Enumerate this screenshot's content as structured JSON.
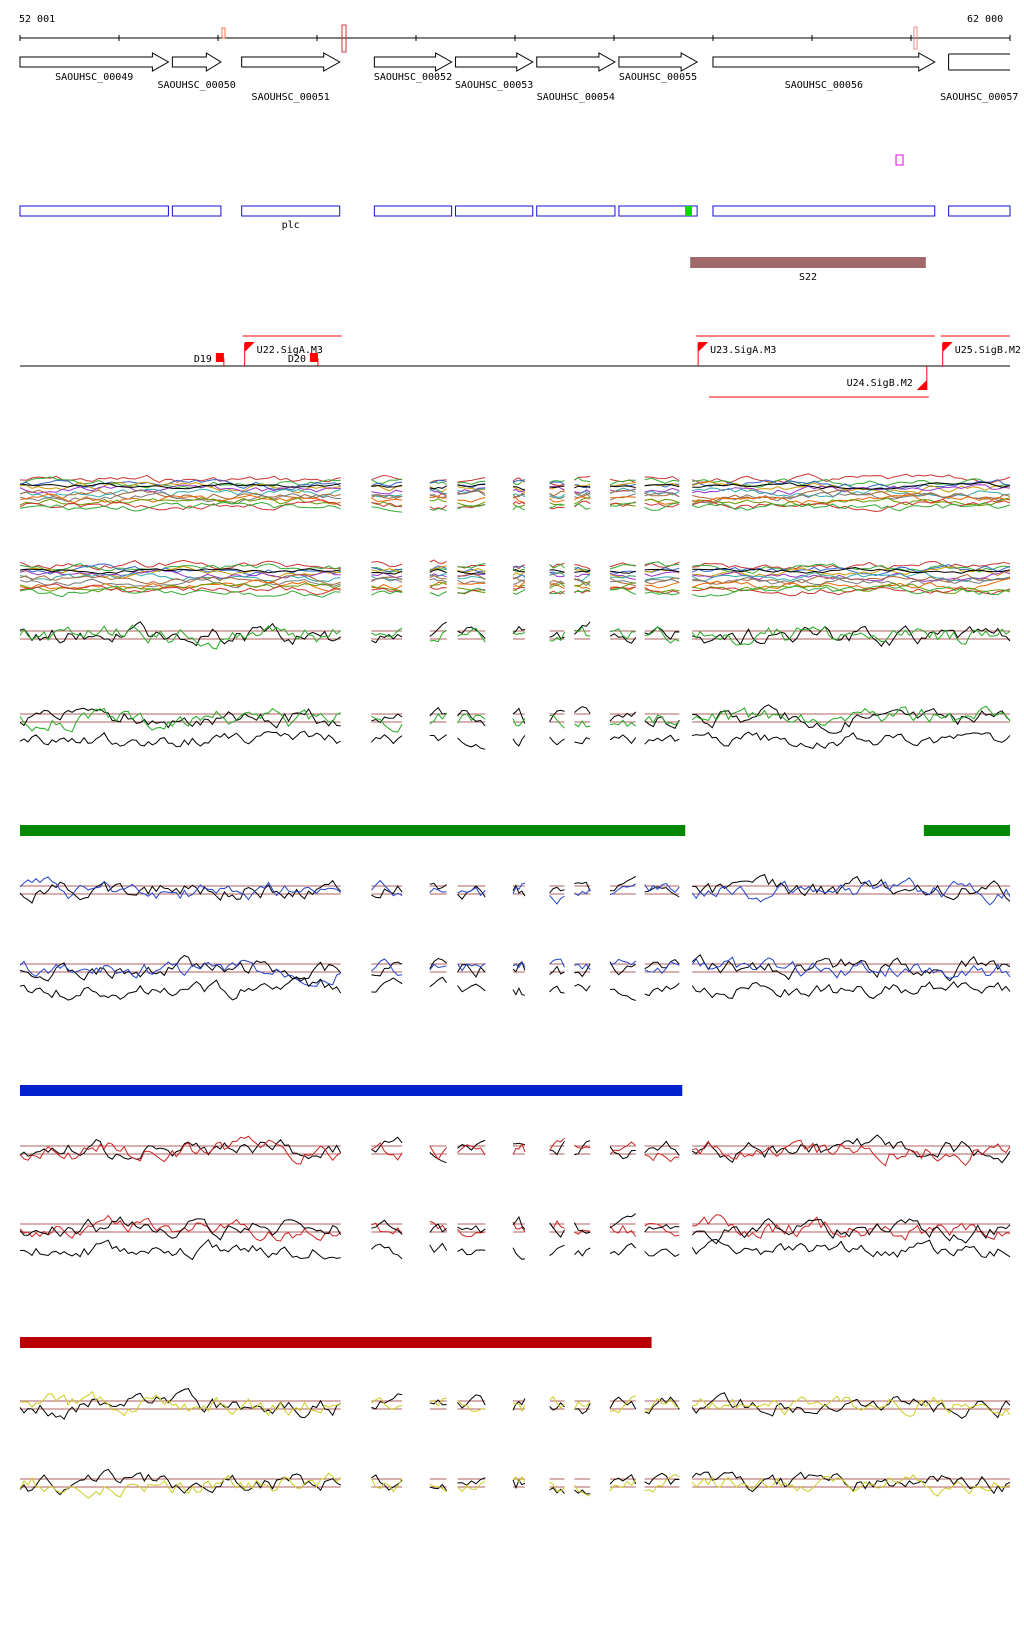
{
  "ruler": {
    "start_label": "52 001",
    "end_label": "62 000",
    "start": 52001,
    "end": 62000
  },
  "genes": [
    {
      "id": "SAOUHSC_00049",
      "start": 52001,
      "end": 53500,
      "row": 0,
      "label_row": 0
    },
    {
      "id": "SAOUHSC_00050",
      "start": 53540,
      "end": 54030,
      "row": 0,
      "label_row": 1
    },
    {
      "id": "SAOUHSC_00051",
      "start": 54240,
      "end": 55230,
      "row": 0,
      "label_row": 2
    },
    {
      "id": "SAOUHSC_00052",
      "start": 55580,
      "end": 56360,
      "row": 0,
      "label_row": 0
    },
    {
      "id": "SAOUHSC_00053",
      "start": 56400,
      "end": 57180,
      "row": 0,
      "label_row": 1
    },
    {
      "id": "SAOUHSC_00054",
      "start": 57220,
      "end": 58010,
      "row": 0,
      "label_row": 2
    },
    {
      "id": "SAOUHSC_00055",
      "start": 58050,
      "end": 58840,
      "row": 0,
      "label_row": 0
    },
    {
      "id": "SAOUHSC_00056",
      "start": 59000,
      "end": 61240,
      "row": 0,
      "label_row": 1
    },
    {
      "id": "SAOUHSC_00057",
      "start": 61380,
      "end": 62000,
      "row": 0,
      "label_row": 2
    }
  ],
  "cds_label": "plc",
  "feature": {
    "label": "S22",
    "start": 58770,
    "end": 61150
  },
  "transcripts": [
    {
      "label": "D19",
      "pos": 54060
    },
    {
      "label": "D20",
      "pos": 55010
    }
  ],
  "promoters": [
    {
      "label": "U22.SigA.M3",
      "start": 54250,
      "end": 55250
    },
    {
      "label": "U23.SigA.M3",
      "start": 58830,
      "end": 61240
    },
    {
      "label": "U24.SigB.M2",
      "start": 58960,
      "end": 61180
    },
    {
      "label": "U25.SigB.M2",
      "start": 61300,
      "end": 62000
    }
  ],
  "colors": {
    "gene_outline": "#000000",
    "cds_outline": "#1010d0",
    "feature_bar": "#a06868",
    "promoter": "#ff0000",
    "green_bar": "#008800",
    "blue_bar": "#0022cc",
    "red_bar": "#b80000",
    "ref_line": "#b06060",
    "magenta_box": "#ee00ee",
    "green_box": "#00dd00"
  },
  "condition_bars": [
    {
      "color": "green",
      "segments": [
        [
          52001,
          58720
        ],
        [
          61130,
          62000
        ]
      ]
    },
    {
      "color": "blue",
      "segments": [
        [
          52001,
          58690
        ]
      ]
    },
    {
      "color": "red",
      "segments": [
        [
          52001,
          58380
        ]
      ]
    }
  ]
}
